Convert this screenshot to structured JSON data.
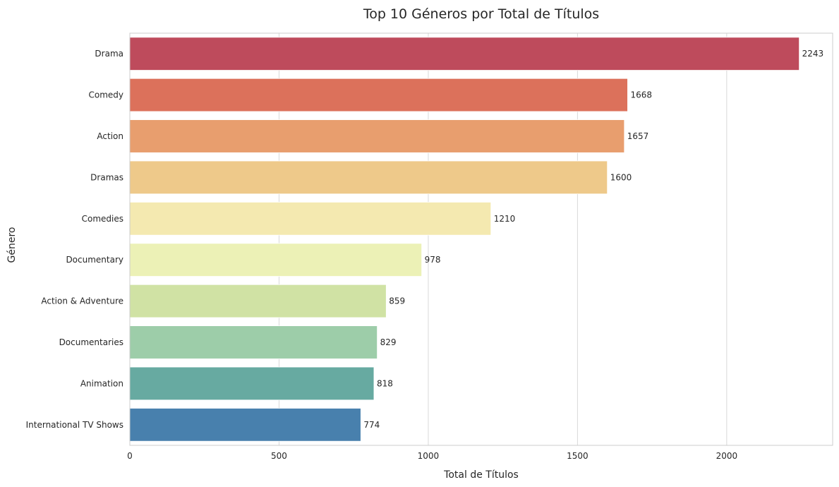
{
  "chart_data": {
    "type": "bar",
    "orientation": "horizontal",
    "title": "Top 10 Géneros por Total de Títulos",
    "xlabel": "Total de Títulos",
    "ylabel": "Género",
    "xlim": [
      0,
      2355
    ],
    "xticks": [
      0,
      500,
      1000,
      1500,
      2000
    ],
    "grid": true,
    "categories": [
      "Drama",
      "Comedy",
      "Action",
      "Dramas",
      "Comedies",
      "Documentary",
      "Action & Adventure",
      "Documentaries",
      "Animation",
      "International TV Shows"
    ],
    "values": [
      2243,
      1668,
      1657,
      1600,
      1210,
      978,
      859,
      829,
      818,
      774
    ],
    "colors": [
      "#be4b5c",
      "#dc715b",
      "#e89e6e",
      "#eec98a",
      "#f4e9b0",
      "#ecf1b6",
      "#d0e2a4",
      "#9dcda9",
      "#67aaa1",
      "#4880ad"
    ]
  }
}
